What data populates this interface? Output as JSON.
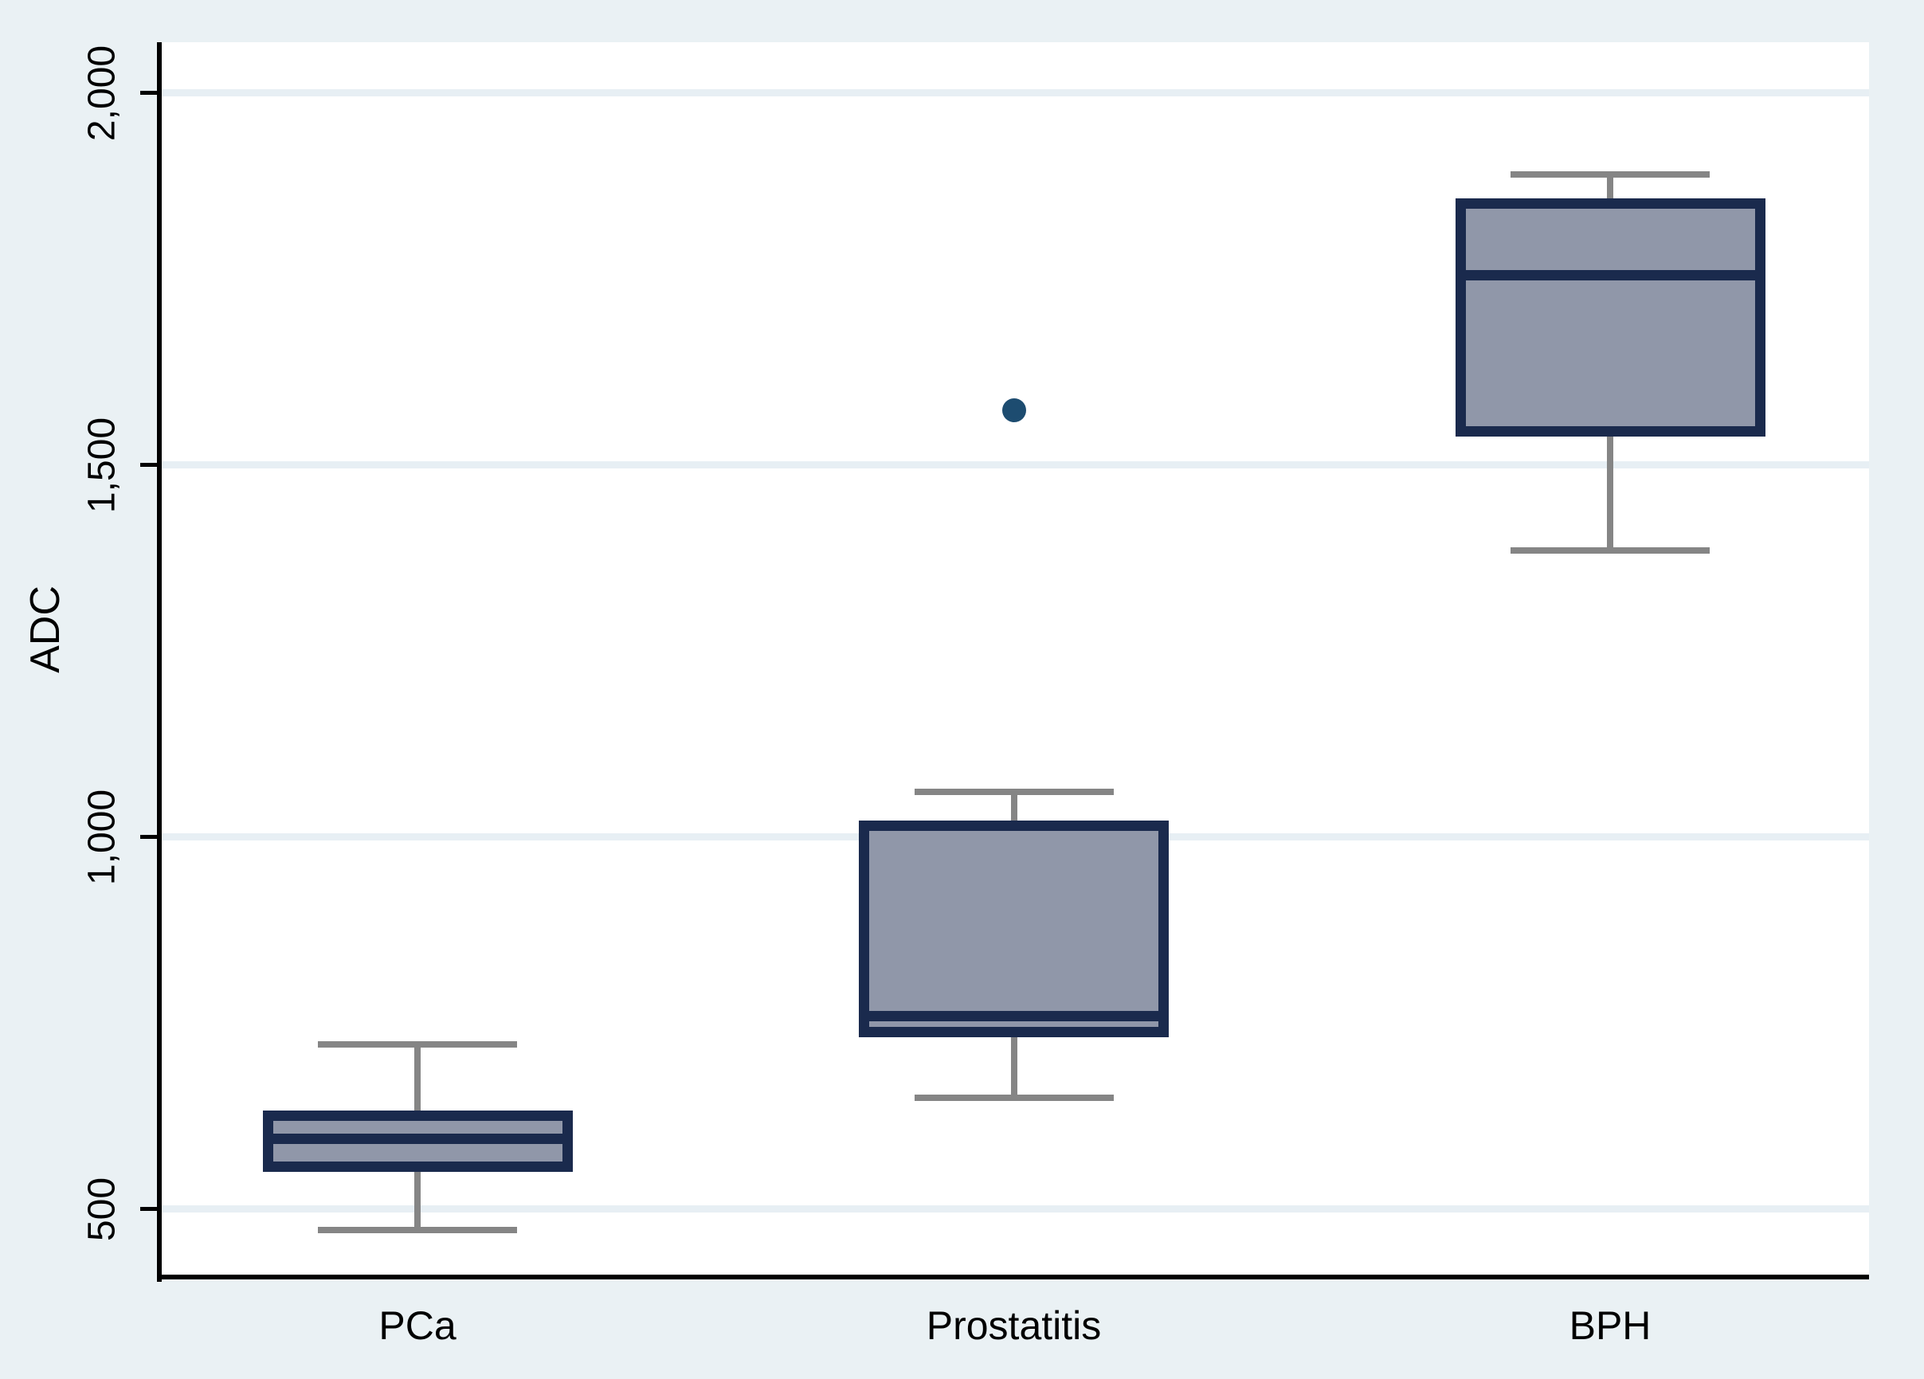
{
  "chart_data": {
    "type": "box",
    "title": "",
    "xlabel": "",
    "ylabel": "ADC",
    "categories": [
      "PCa",
      "Prostatitis",
      "BPH"
    ],
    "y_ticks": [
      {
        "value": 500,
        "label": "500"
      },
      {
        "value": 1000,
        "label": "1,000"
      },
      {
        "value": 1500,
        "label": "1,500"
      },
      {
        "value": 2000,
        "label": "2,000"
      }
    ],
    "ylim": [
      409,
      2068
    ],
    "grid": "horizontal",
    "legend": "none",
    "series": [
      {
        "name": "PCa",
        "whisker_low": 472,
        "q1": 557,
        "median": 595,
        "q3": 626,
        "whisker_high": 721,
        "outliers": []
      },
      {
        "name": "Prostatitis",
        "whisker_low": 650,
        "q1": 738,
        "median": 760,
        "q3": 1015,
        "whisker_high": 1061,
        "outliers": [
          1573
        ]
      },
      {
        "name": "BPH",
        "whisker_low": 1385,
        "q1": 1545,
        "median": 1755,
        "q3": 1851,
        "whisker_high": 1890,
        "outliers": []
      }
    ],
    "colors": {
      "page_background": "#EAF1F4",
      "plot_background": "#FFFFFF",
      "gridline": "#E7EFF4",
      "box_fill": "#9097A9",
      "box_border": "#1A2A4D",
      "median": "#1A2A4D",
      "whisker": "#858585",
      "outlier": "#1D4C70",
      "axis": "#000000",
      "text": "#000000"
    }
  }
}
